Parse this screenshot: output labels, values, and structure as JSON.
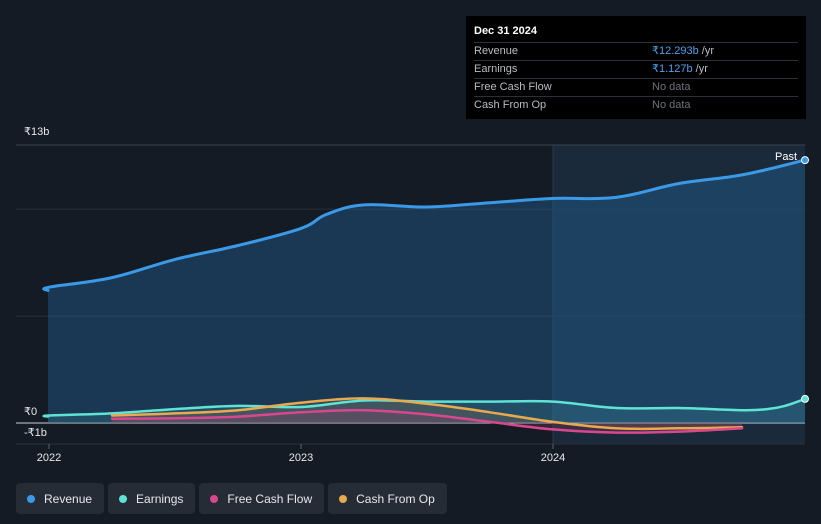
{
  "tooltip": {
    "date": "Dec 31 2024",
    "rows": [
      {
        "label": "Revenue",
        "value": "₹12.293b",
        "unit": "/yr"
      },
      {
        "label": "Earnings",
        "value": "₹1.127b",
        "unit": "/yr"
      },
      {
        "label": "Free Cash Flow",
        "value": "No data",
        "unit": ""
      },
      {
        "label": "Cash From Op",
        "value": "No data",
        "unit": ""
      }
    ]
  },
  "past_label": "Past",
  "legend": [
    {
      "label": "Revenue",
      "color": "#3b9ae8"
    },
    {
      "label": "Earnings",
      "color": "#5fe3d6"
    },
    {
      "label": "Free Cash Flow",
      "color": "#d9488f"
    },
    {
      "label": "Cash From Op",
      "color": "#e9a94f"
    }
  ],
  "chart_data": {
    "type": "line",
    "title": "",
    "xlabel": "",
    "ylabel": "",
    "x_ticks": [
      "2022",
      "2023",
      "2024"
    ],
    "y_ticks": [
      {
        "value": 13,
        "label": "₹13b"
      },
      {
        "value": 0,
        "label": "₹0"
      },
      {
        "value": -1,
        "label": "-₹1b"
      }
    ],
    "ylim": [
      -1,
      13
    ],
    "xlim": [
      2021.9,
      2025.0
    ],
    "highlight_from": 2024.0,
    "series": [
      {
        "name": "Revenue",
        "color": "#3b9ae8",
        "x": [
          2021.9,
          2022.0,
          2022.25,
          2022.5,
          2022.75,
          2023.0,
          2023.1,
          2023.25,
          2023.5,
          2023.75,
          2024.0,
          2024.25,
          2024.5,
          2024.75,
          2025.0
        ],
        "y": [
          6.2,
          6.35,
          6.8,
          7.65,
          8.3,
          9.1,
          9.75,
          10.2,
          10.1,
          10.3,
          10.5,
          10.55,
          11.2,
          11.6,
          12.293
        ]
      },
      {
        "name": "Earnings",
        "color": "#5fe3d6",
        "x": [
          2021.9,
          2022.0,
          2022.25,
          2022.5,
          2022.75,
          2023.0,
          2023.25,
          2023.5,
          2023.75,
          2024.0,
          2024.25,
          2024.5,
          2024.75,
          2024.85,
          2024.92,
          2025.0
        ],
        "y": [
          0.3,
          0.35,
          0.45,
          0.65,
          0.8,
          0.75,
          1.05,
          1.0,
          1.0,
          1.0,
          0.7,
          0.7,
          0.6,
          0.65,
          0.8,
          1.127
        ]
      },
      {
        "name": "Free Cash Flow",
        "color": "#d9488f",
        "x": [
          2022.25,
          2022.5,
          2022.75,
          2023.0,
          2023.25,
          2023.5,
          2023.75,
          2024.0,
          2024.25,
          2024.5,
          2024.75
        ],
        "y": [
          0.2,
          0.22,
          0.3,
          0.5,
          0.6,
          0.4,
          0.05,
          -0.3,
          -0.45,
          -0.4,
          -0.25
        ]
      },
      {
        "name": "Cash From Op",
        "color": "#e9a94f",
        "x": [
          2022.25,
          2022.5,
          2022.75,
          2023.0,
          2023.25,
          2023.5,
          2023.75,
          2024.0,
          2024.25,
          2024.5,
          2024.75
        ],
        "y": [
          0.35,
          0.45,
          0.6,
          0.95,
          1.15,
          0.9,
          0.5,
          0.05,
          -0.25,
          -0.25,
          -0.2
        ]
      }
    ]
  }
}
